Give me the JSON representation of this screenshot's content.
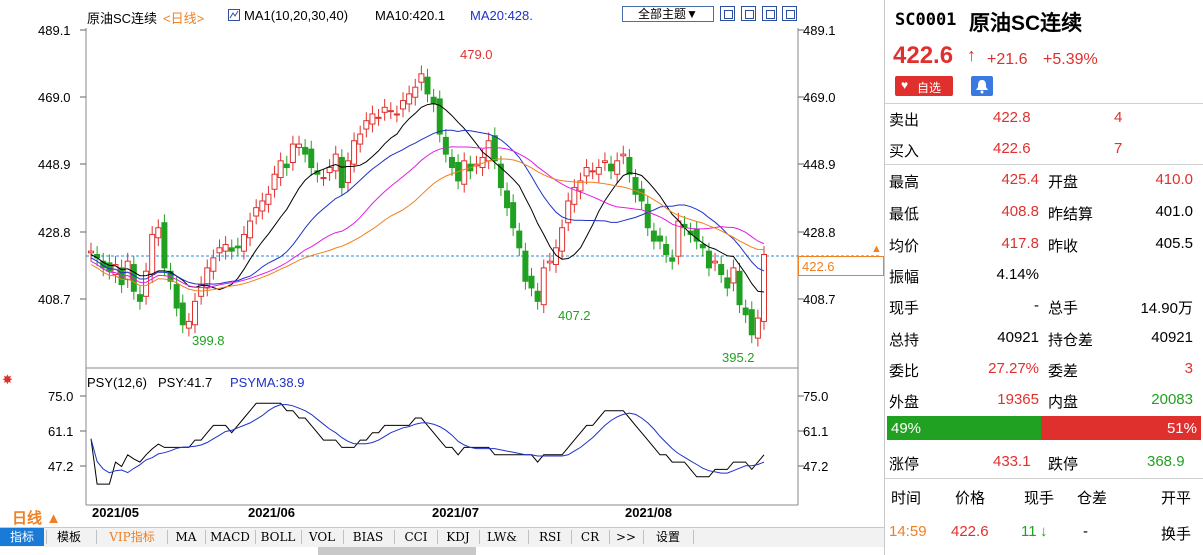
{
  "chart_header": {
    "title": "原油SC连续",
    "period": "<日线>",
    "ma_label": "MA1(10,20,30,40)",
    "ma10": "MA10:420.1",
    "ma20": "MA20:428."
  },
  "toolbar": {
    "theme_button": "全部主题▼"
  },
  "price_axis": [
    "489.1",
    "469.0",
    "448.9",
    "428.8",
    "408.7"
  ],
  "annotations": {
    "high": "479.0",
    "low1": "399.8",
    "low2": "407.2",
    "low3": "395.2",
    "current": "422.6"
  },
  "psy": {
    "label": "PSY(12,6)",
    "psy_val": "PSY:41.7",
    "psyma_val": "PSYMA:38.9",
    "axis": [
      "75.0",
      "61.1",
      "47.2"
    ]
  },
  "time_axis": [
    "2021/05",
    "2021/06",
    "2021/07",
    "2021/08"
  ],
  "period_button": "日线 ▲",
  "bottom_tabs": [
    "指标",
    "模板",
    "VIP指标",
    "MA",
    "MACD",
    "BOLL",
    "VOL",
    "BIAS",
    "CCI",
    "KDJ",
    "LW&",
    "RSI",
    "CR",
    ">>",
    "设置"
  ],
  "quote": {
    "code": "SC0001",
    "name": "原油SC连续",
    "price": "422.6",
    "arrow": "↑",
    "change": "+21.6",
    "change_pct": "+5.39%",
    "fav_button": "自选",
    "sell_label": "卖出",
    "sell_price": "422.8",
    "sell_vol": "4",
    "buy_label": "买入",
    "buy_price": "422.6",
    "buy_vol": "7",
    "rows": [
      {
        "l1": "最高",
        "v1": "425.4",
        "l2": "开盘",
        "v2": "410.0",
        "c1": "#e0302e",
        "c2": "#e0302e"
      },
      {
        "l1": "最低",
        "v1": "408.8",
        "l2": "昨结算",
        "v2": "401.0",
        "c1": "#e0302e",
        "c2": "#000000"
      },
      {
        "l1": "均价",
        "v1": "417.8",
        "l2": "昨收",
        "v2": "405.5",
        "c1": "#e0302e",
        "c2": "#000000"
      },
      {
        "l1": "振幅",
        "v1": "4.14%",
        "l2": "",
        "v2": "",
        "c1": "#000000",
        "c2": "#000000"
      },
      {
        "l1": "现手",
        "v1": "-",
        "l2": "总手",
        "v2": "14.90万",
        "c1": "#000000",
        "c2": "#000000"
      },
      {
        "l1": "总持",
        "v1": "40921",
        "l2": "持仓差",
        "v2": "40921",
        "c1": "#000000",
        "c2": "#000000"
      },
      {
        "l1": "委比",
        "v1": "27.27%",
        "l2": "委差",
        "v2": "3",
        "c1": "#e0302e",
        "c2": "#e0302e"
      },
      {
        "l1": "外盘",
        "v1": "19365",
        "l2": "内盘",
        "v2": "20083",
        "c1": "#e0302e",
        "c2": "#21a121"
      }
    ],
    "bar_left": "49%",
    "bar_right": "51%",
    "bar_left_frac": 0.49,
    "limit_up_label": "涨停",
    "limit_up": "433.1",
    "limit_down_label": "跌停",
    "limit_down": "368.9",
    "trade_headers": [
      "时间",
      "价格",
      "现手",
      "仓差",
      "开平"
    ],
    "trade": {
      "time": "14:59",
      "price": "422.6",
      "qty": "11",
      "qty_arrow": "↓",
      "diff": "-",
      "type": "换手"
    }
  },
  "colors": {
    "up": "#e0302e",
    "down": "#21a121",
    "ma10": "#000000",
    "ma20": "#1e32c8",
    "ma30": "#e020e0",
    "ma40": "#f08020"
  }
}
